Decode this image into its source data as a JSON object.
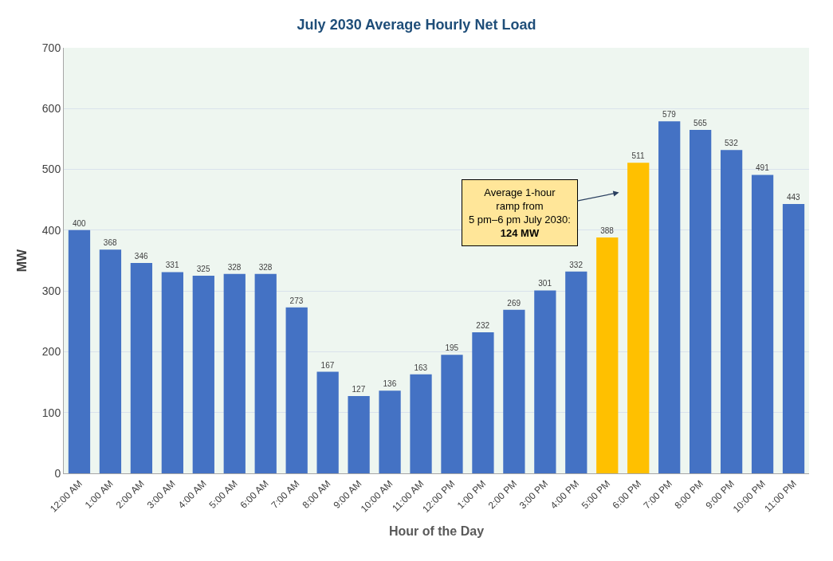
{
  "chart_data": {
    "type": "bar",
    "title": "July 2030 Average Hourly Net Load",
    "xlabel": "Hour of the Day",
    "ylabel": "MW",
    "categories": [
      "12:00 AM",
      "1:00 AM",
      "2:00 AM",
      "3:00 AM",
      "4:00 AM",
      "5:00 AM",
      "6:00 AM",
      "7:00 AM",
      "8:00 AM",
      "9:00 AM",
      "10:00 AM",
      "11:00 AM",
      "12:00 PM",
      "1:00 PM",
      "2:00 PM",
      "3:00 PM",
      "4:00 PM",
      "5:00 PM",
      "6:00 PM",
      "7:00 PM",
      "8:00 PM",
      "9:00 PM",
      "10:00 PM",
      "11:00 PM"
    ],
    "values": [
      400,
      368,
      346,
      331,
      325,
      328,
      328,
      273,
      167,
      127,
      136,
      163,
      195,
      232,
      269,
      301,
      332,
      388,
      511,
      579,
      565,
      532,
      491,
      443
    ],
    "colors": [
      "#4472c4",
      "#4472c4",
      "#4472c4",
      "#4472c4",
      "#4472c4",
      "#4472c4",
      "#4472c4",
      "#4472c4",
      "#4472c4",
      "#4472c4",
      "#4472c4",
      "#4472c4",
      "#4472c4",
      "#4472c4",
      "#4472c4",
      "#4472c4",
      "#4472c4",
      "#ffc000",
      "#ffc000",
      "#4472c4",
      "#4472c4",
      "#4472c4",
      "#4472c4",
      "#4472c4"
    ],
    "data_labels": true,
    "ylim": [
      0,
      700
    ],
    "yticks": [
      0,
      100,
      200,
      300,
      400,
      500,
      600,
      700
    ],
    "grid": "y",
    "annotations": [
      "Average 1-hour\nramp from\n5 pm–6 pm July 2030:\n124 MW"
    ]
  }
}
